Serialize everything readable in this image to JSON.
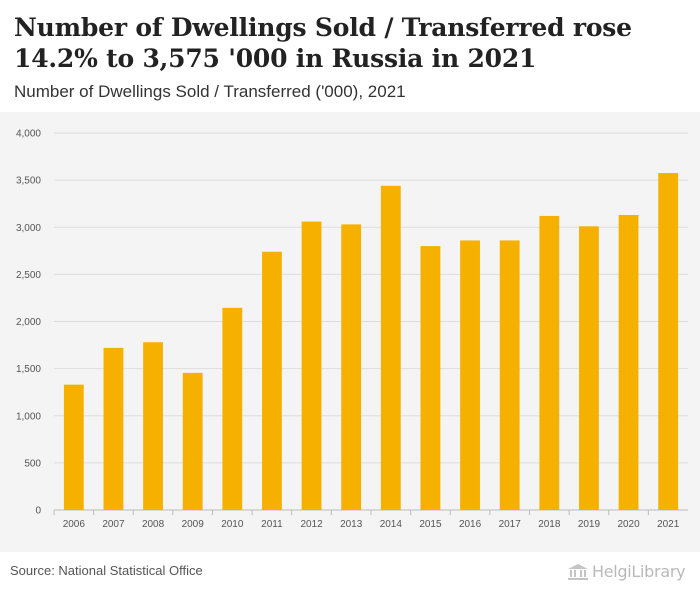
{
  "title": "Number of Dwellings Sold / Transferred rose 14.2% to 3,575 '000 in Russia in 2021",
  "subtitle": "Number of Dwellings Sold / Transferred ('000), 2021",
  "source": "Source: National Statistical Office",
  "logo": {
    "text": "HelgiLibrary",
    "icon": "building-columns-icon"
  },
  "colors": {
    "bar": "#f5b000",
    "grid": "#dddddd",
    "plot_bg": "#f4f4f4"
  },
  "chart_data": {
    "type": "bar",
    "categories": [
      "2006",
      "2007",
      "2008",
      "2009",
      "2010",
      "2011",
      "2012",
      "2013",
      "2014",
      "2015",
      "2016",
      "2017",
      "2018",
      "2019",
      "2020",
      "2021"
    ],
    "values": [
      1330,
      1720,
      1780,
      1455,
      2145,
      2740,
      3060,
      3030,
      3440,
      2800,
      2860,
      2860,
      3120,
      3010,
      3130,
      3575
    ],
    "ylim": [
      0,
      4000
    ],
    "yticks": [
      0,
      500,
      1000,
      1500,
      2000,
      2500,
      3000,
      3500,
      4000
    ],
    "ytick_labels": [
      "0",
      "500",
      "1,000",
      "1,500",
      "2,000",
      "2,500",
      "3,000",
      "3,500",
      "4,000"
    ],
    "grid": true
  }
}
